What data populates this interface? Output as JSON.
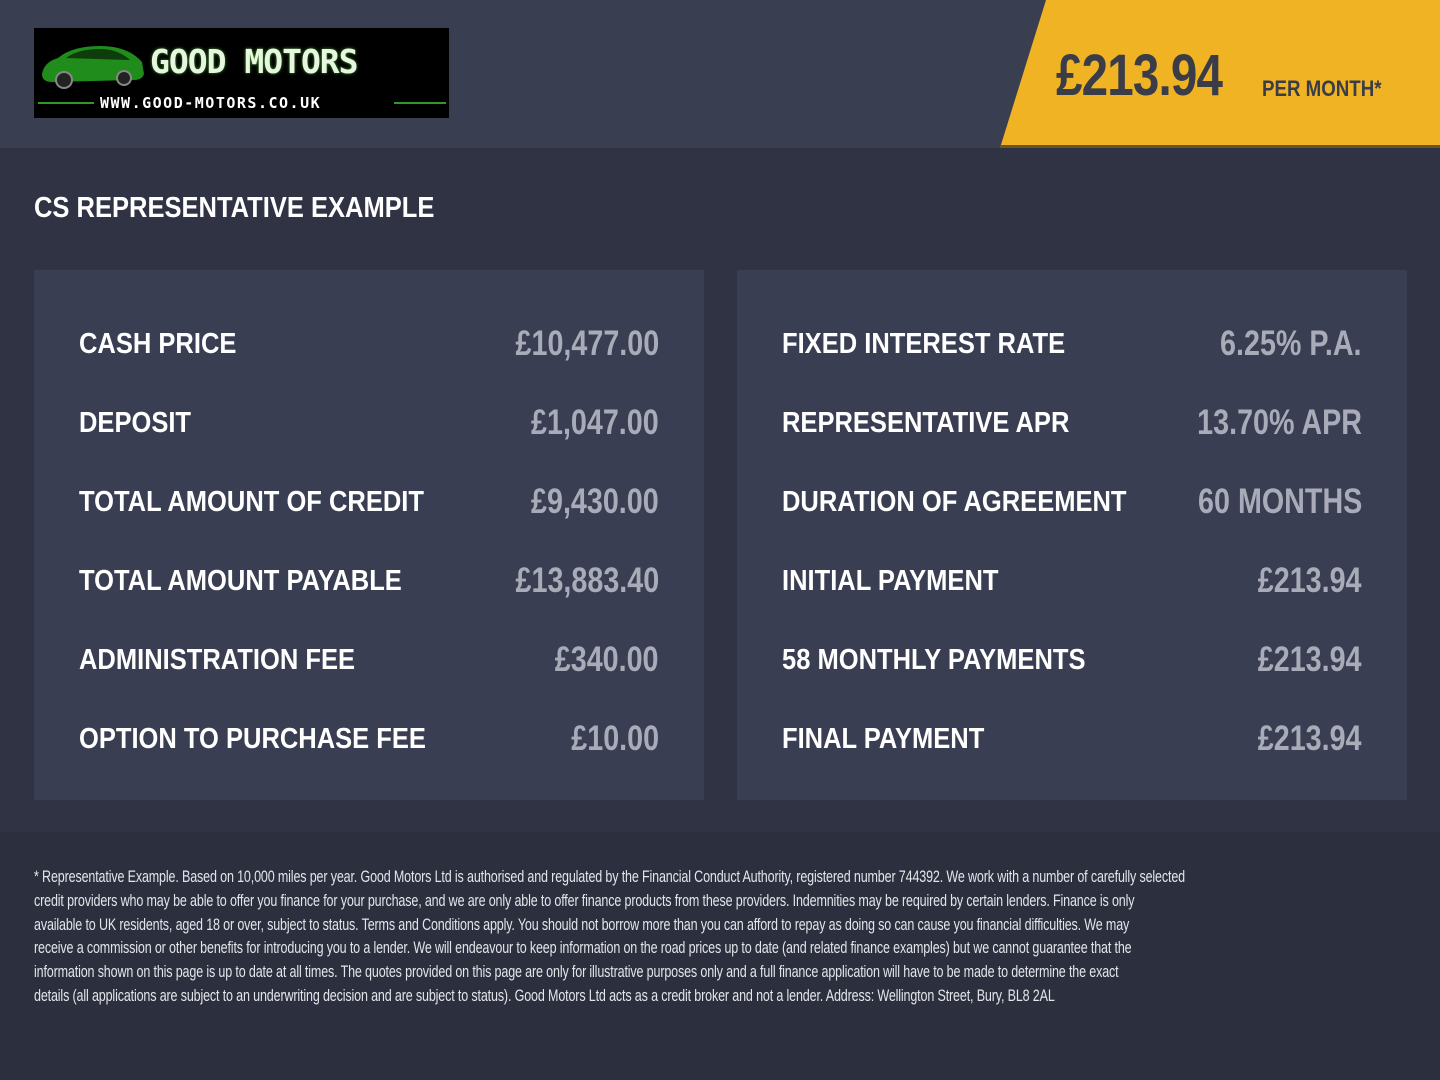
{
  "header": {
    "logo": {
      "brand": "GOOD MOTORS",
      "url": "WWW.GOOD-MOTORS.CO.UK"
    },
    "monthly_price": "£213.94",
    "per_month_label": "PER MONTH*",
    "accent_color": "#f0b323"
  },
  "section_title": "CS REPRESENTATIVE EXAMPLE",
  "left_panel": [
    {
      "label": "CASH PRICE",
      "value": "£10,477.00"
    },
    {
      "label": "DEPOSIT",
      "value": "£1,047.00"
    },
    {
      "label": "TOTAL AMOUNT OF CREDIT",
      "value": "£9,430.00"
    },
    {
      "label": "TOTAL AMOUNT PAYABLE",
      "value": "£13,883.40"
    },
    {
      "label": "ADMINISTRATION FEE",
      "value": "£340.00"
    },
    {
      "label": "OPTION TO PURCHASE FEE",
      "value": "£10.00"
    }
  ],
  "right_panel": [
    {
      "label": "FIXED INTEREST RATE",
      "value": "6.25% P.A."
    },
    {
      "label": "REPRESENTATIVE APR",
      "value": "13.70% APR"
    },
    {
      "label": "DURATION OF AGREEMENT",
      "value": "60 MONTHS"
    },
    {
      "label": "INITIAL PAYMENT",
      "value": "£213.94"
    },
    {
      "label": "58 MONTHLY PAYMENTS",
      "value": "£213.94"
    },
    {
      "label": "FINAL PAYMENT",
      "value": "£213.94"
    }
  ],
  "disclaimer_lines": [
    "* Representative Example. Based on 10,000 miles per year. Good Motors Ltd is authorised and regulated by the Financial Conduct Authority, registered number 744392. We work with a number of carefully selected",
    "credit providers who may be able to offer you finance for your purchase, and we are only able to offer finance products from these providers. Indemnities may be required by certain lenders. Finance is only",
    "available to UK residents, aged 18 or over, subject to status. Terms and Conditions apply. You should not borrow more than you can afford to repay as doing so can cause you financial difficulties. We may",
    "receive a commission or other benefits for introducing you to a lender. We will endeavour to keep information on the road prices up to date (and related finance examples) but we cannot guarantee that the",
    "information shown on this page is up to date at all times. The quotes provided on this page are only for illustrative purposes only and a full finance application will have to be made to determine the exact",
    "details (all applications are subject to an underwriting decision and are subject to status). Good Motors Ltd acts as a credit broker and not a lender. Address: Wellington Street, Bury, BL8 2AL"
  ]
}
